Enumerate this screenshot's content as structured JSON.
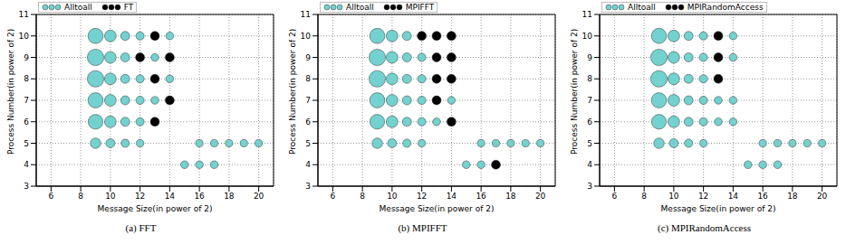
{
  "chart_data": [
    {
      "type": "scatter",
      "title": "(a) FFT",
      "xlabel": "Message Size(in power of 2)",
      "ylabel": "Process Number(in power of 2)",
      "xlim": [
        5,
        21
      ],
      "ylim": [
        3,
        11
      ],
      "xticks": [
        6,
        8,
        10,
        12,
        14,
        16,
        18,
        20
      ],
      "yticks": [
        3,
        4,
        5,
        6,
        7,
        8,
        9,
        10,
        11
      ],
      "grid": true,
      "legend": "upper left",
      "series": [
        {
          "name": "Alltoall",
          "color": "#73d2cf",
          "x": [
            9,
            10,
            11,
            12,
            14,
            9,
            10,
            11,
            13,
            9,
            10,
            11,
            12,
            14,
            9,
            10,
            11,
            12,
            13,
            9,
            10,
            11,
            12,
            9,
            10,
            11,
            12,
            16,
            17,
            18,
            19,
            20,
            15,
            16,
            17
          ],
          "values": [
            10,
            10,
            10,
            10,
            10,
            9,
            9,
            9,
            9,
            8,
            8,
            8,
            8,
            8,
            7,
            7,
            7,
            7,
            7,
            6,
            6,
            6,
            6,
            5,
            5,
            5,
            5,
            5,
            5,
            5,
            5,
            5,
            4,
            4,
            4
          ],
          "sizes": [
            85,
            50,
            30,
            25,
            22,
            100,
            50,
            30,
            22,
            100,
            50,
            30,
            25,
            22,
            85,
            50,
            30,
            25,
            22,
            80,
            50,
            30,
            25,
            40,
            30,
            25,
            20,
            20,
            20,
            20,
            20,
            20,
            22,
            22,
            22
          ]
        },
        {
          "name": "FT",
          "color": "#000000",
          "x": [
            13,
            12,
            14,
            13,
            14,
            13
          ],
          "values": [
            10,
            9,
            9,
            8,
            7,
            6
          ],
          "sizes": [
            30,
            30,
            30,
            30,
            30,
            30
          ]
        }
      ]
    },
    {
      "type": "scatter",
      "title": "(b) MPIFFT",
      "xlabel": "Message Size(in power of 2)",
      "ylabel": "Process Number(in power of 2)",
      "xlim": [
        5,
        21
      ],
      "ylim": [
        3,
        11
      ],
      "xticks": [
        6,
        8,
        10,
        12,
        14,
        16,
        18,
        20
      ],
      "yticks": [
        3,
        4,
        5,
        6,
        7,
        8,
        9,
        10,
        11
      ],
      "grid": true,
      "legend": "upper left",
      "series": [
        {
          "name": "Alltoall",
          "color": "#73d2cf",
          "x": [
            9,
            10,
            11,
            9,
            10,
            11,
            12,
            9,
            10,
            11,
            12,
            9,
            10,
            11,
            12,
            14,
            9,
            10,
            11,
            12,
            13,
            9,
            10,
            11,
            12,
            16,
            17,
            18,
            19,
            20,
            15,
            16
          ],
          "values": [
            10,
            10,
            10,
            9,
            9,
            9,
            9,
            8,
            8,
            8,
            8,
            7,
            7,
            7,
            7,
            7,
            6,
            6,
            6,
            6,
            6,
            5,
            5,
            5,
            5,
            5,
            5,
            5,
            5,
            5,
            4,
            4
          ],
          "sizes": [
            85,
            50,
            30,
            100,
            50,
            30,
            25,
            100,
            50,
            30,
            25,
            85,
            50,
            30,
            25,
            22,
            80,
            50,
            30,
            25,
            22,
            40,
            30,
            25,
            20,
            20,
            20,
            20,
            20,
            20,
            22,
            22
          ]
        },
        {
          "name": "MPIFFT",
          "color": "#000000",
          "x": [
            12,
            13,
            14,
            13,
            14,
            13,
            14,
            13,
            14,
            17
          ],
          "values": [
            10,
            10,
            10,
            9,
            9,
            8,
            8,
            7,
            6,
            4
          ],
          "sizes": [
            30,
            30,
            30,
            30,
            30,
            30,
            30,
            30,
            30,
            30
          ]
        }
      ]
    },
    {
      "type": "scatter",
      "title": "(c) MPIRandomAccess",
      "xlabel": "Message Size(in power of 2)",
      "ylabel": "Process Number(in power of 2)",
      "xlim": [
        5,
        21
      ],
      "ylim": [
        3,
        11
      ],
      "xticks": [
        6,
        8,
        10,
        12,
        14,
        16,
        18,
        20
      ],
      "yticks": [
        3,
        4,
        5,
        6,
        7,
        8,
        9,
        10,
        11
      ],
      "grid": true,
      "legend": "upper left",
      "series": [
        {
          "name": "Alltoall",
          "color": "#73d2cf",
          "x": [
            9,
            10,
            11,
            12,
            14,
            9,
            10,
            11,
            12,
            14,
            9,
            10,
            11,
            12,
            9,
            10,
            11,
            12,
            13,
            14,
            9,
            10,
            11,
            12,
            13,
            14,
            9,
            10,
            11,
            12,
            16,
            17,
            18,
            19,
            20,
            15,
            16,
            17
          ],
          "values": [
            10,
            10,
            10,
            10,
            10,
            9,
            9,
            9,
            9,
            9,
            8,
            8,
            8,
            8,
            7,
            7,
            7,
            7,
            7,
            7,
            6,
            6,
            6,
            6,
            6,
            6,
            5,
            5,
            5,
            5,
            5,
            5,
            5,
            5,
            5,
            4,
            4,
            4
          ],
          "sizes": [
            85,
            50,
            30,
            25,
            22,
            100,
            50,
            30,
            25,
            22,
            100,
            50,
            30,
            25,
            85,
            50,
            30,
            25,
            22,
            22,
            80,
            50,
            30,
            25,
            22,
            22,
            40,
            30,
            25,
            20,
            20,
            20,
            20,
            20,
            20,
            22,
            22,
            22
          ]
        },
        {
          "name": "MPIRandomAccess",
          "color": "#000000",
          "x": [
            13,
            13,
            13
          ],
          "values": [
            10,
            9,
            8
          ],
          "sizes": [
            30,
            30,
            30
          ]
        }
      ]
    }
  ]
}
